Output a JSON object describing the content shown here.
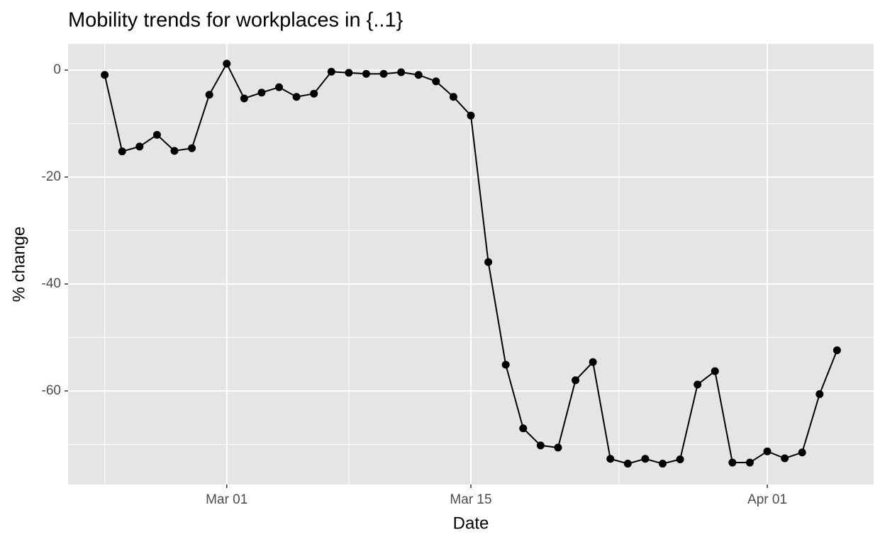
{
  "chart_data": {
    "type": "line",
    "title": "Mobility trends for workplaces in {..1}",
    "x_label": "Date",
    "y_label": "% change",
    "x": [
      "Feb 23",
      "Feb 24",
      "Feb 25",
      "Feb 26",
      "Feb 27",
      "Feb 28",
      "Feb 29",
      "Mar 01",
      "Mar 02",
      "Mar 03",
      "Mar 04",
      "Mar 05",
      "Mar 06",
      "Mar 07",
      "Mar 08",
      "Mar 09",
      "Mar 10",
      "Mar 11",
      "Mar 12",
      "Mar 13",
      "Mar 14",
      "Mar 15",
      "Mar 16",
      "Mar 17",
      "Mar 18",
      "Mar 19",
      "Mar 20",
      "Mar 21",
      "Mar 22",
      "Mar 23",
      "Mar 24",
      "Mar 25",
      "Mar 26",
      "Mar 27",
      "Mar 28",
      "Mar 29",
      "Mar 30",
      "Mar 31",
      "Apr 01",
      "Apr 02",
      "Apr 03",
      "Apr 04",
      "Apr 05"
    ],
    "values": [
      -0.9,
      -15.2,
      -14.3,
      -12.1,
      -15.1,
      -14.6,
      -4.6,
      1.2,
      -5.3,
      -4.2,
      -3.2,
      -5.0,
      -4.4,
      -0.3,
      -0.5,
      -0.7,
      -0.7,
      -0.4,
      -0.9,
      -2.1,
      -5.0,
      -8.5,
      -35.9,
      -55.1,
      -67.0,
      -70.2,
      -70.6,
      -58.0,
      -54.6,
      -72.7,
      -73.6,
      -72.7,
      -73.6,
      -72.8,
      -58.8,
      -56.3,
      -73.4,
      -73.4,
      -71.3,
      -72.6,
      -71.5,
      -60.6,
      -52.4
    ],
    "color": "#000000",
    "xticks": [
      "Mar 01",
      "Mar 15",
      "Apr 01"
    ],
    "ylim": [
      -77.5,
      4.9
    ],
    "yticks": [
      -60,
      -40,
      -20,
      0
    ],
    "grid": true
  }
}
